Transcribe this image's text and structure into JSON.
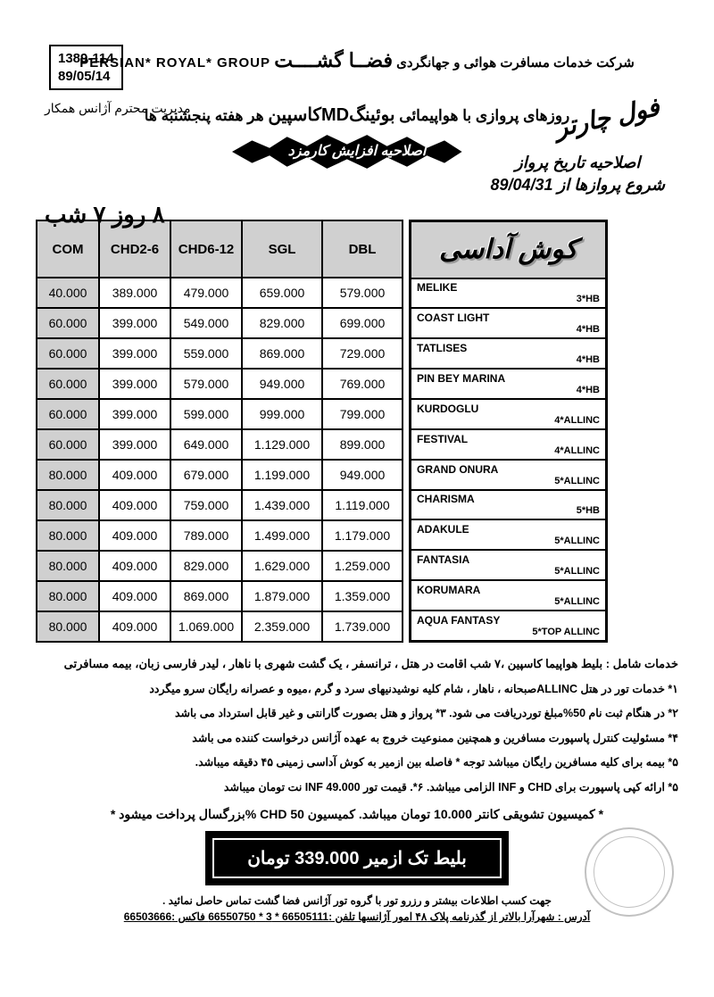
{
  "ref": {
    "line1": "1389-114",
    "line2": "89/05/14"
  },
  "header": {
    "company_fa": "فضــا گشــــت",
    "company_prefix": "شرکت خدمات مسافرت هوائی و جهانگردی",
    "company_en": "PERSIAN* ROYAL* GROUP",
    "management": "مدیریت محترم آژانس همکار"
  },
  "flight_title": {
    "pre": "روزهای پروازی با هواپیمائی",
    "bold": "بوئینگMDکاسپین",
    "post": " هر هفته پنجشنبه ها"
  },
  "charter": "فول چارتر",
  "correction": {
    "l1": "اصلاحیه تاریخ پرواز",
    "l2": "شروع پروازها از 89/04/31"
  },
  "black_star": "اصلاحیه افزایش کارمزد",
  "duration": "۸ روز ۷ شب",
  "destination": "کوش آداسی",
  "price_headers": [
    "COM",
    "CHD2-6",
    "CHD6-12",
    "SGL",
    "DBL"
  ],
  "hotels": [
    {
      "name": "MELIKE",
      "class": "3*HB",
      "com": "40.000",
      "chd26": "389.000",
      "chd612": "479.000",
      "sgl": "659.000",
      "dbl": "579.000"
    },
    {
      "name": "COAST LIGHT",
      "class": "4*HB",
      "com": "60.000",
      "chd26": "399.000",
      "chd612": "549.000",
      "sgl": "829.000",
      "dbl": "699.000"
    },
    {
      "name": "TATLISES",
      "class": "4*HB",
      "com": "60.000",
      "chd26": "399.000",
      "chd612": "559.000",
      "sgl": "869.000",
      "dbl": "729.000"
    },
    {
      "name": "PIN BEY MARINA",
      "class": "4*HB",
      "com": "60.000",
      "chd26": "399.000",
      "chd612": "579.000",
      "sgl": "949.000",
      "dbl": "769.000"
    },
    {
      "name": "KURDOGLU",
      "class": "4*ALLINC",
      "com": "60.000",
      "chd26": "399.000",
      "chd612": "599.000",
      "sgl": "999.000",
      "dbl": "799.000"
    },
    {
      "name": "FESTIVAL",
      "class": "4*ALLINC",
      "com": "60.000",
      "chd26": "399.000",
      "chd612": "649.000",
      "sgl": "1.129.000",
      "dbl": "899.000"
    },
    {
      "name": "GRAND ONURA",
      "class": "5*ALLINC",
      "com": "80.000",
      "chd26": "409.000",
      "chd612": "679.000",
      "sgl": "1.199.000",
      "dbl": "949.000"
    },
    {
      "name": "CHARISMA",
      "class": "5*HB",
      "com": "80.000",
      "chd26": "409.000",
      "chd612": "759.000",
      "sgl": "1.439.000",
      "dbl": "1.119.000"
    },
    {
      "name": "ADAKULE",
      "class": "5*ALLINC",
      "com": "80.000",
      "chd26": "409.000",
      "chd612": "789.000",
      "sgl": "1.499.000",
      "dbl": "1.179.000"
    },
    {
      "name": "FANTASIA",
      "class": "5*ALLINC",
      "com": "80.000",
      "chd26": "409.000",
      "chd612": "829.000",
      "sgl": "1.629.000",
      "dbl": "1.259.000"
    },
    {
      "name": "KORUMARA",
      "class": "5*ALLINC",
      "com": "80.000",
      "chd26": "409.000",
      "chd612": "869.000",
      "sgl": "1.879.000",
      "dbl": "1.359.000"
    },
    {
      "name": "AQUA FANTASY",
      "class": "5*TOP ALLINC",
      "com": "80.000",
      "chd26": "409.000",
      "chd612": "1.069.000",
      "sgl": "2.359.000",
      "dbl": "1.739.000"
    }
  ],
  "notes": [
    "خدمات شامل : بلیط هواپیما کاسپین ،۷ شب اقامت در هتل ، ترانسفر ، یک گشت شهری با ناهار ، لیدر فارسی زبان، بیمه مسافرتی",
    "۱* خدمات تور در هتل ALLINCصبحانه ، ناهار ، شام کلیه نوشیدنیهای سرد و گرم ،میوه و عصرانه  رایگان سرو میگردد",
    "۲* در هنگام ثبت نام 50%مبلغ توردریافت  می شود. ۳* پرواز و هتل بصورت گارانتی و غیر قابل استرداد می باشد",
    "۴* مسئولیت کنترل پاسپورت مسافرین و همچنین ممنوعیت خروج به عهده  آژانس درخواست کننده می باشد",
    "۵* بیمه برای کلیه مسافرین رایگان میباشد توجه * فاصله بین  ازمیر به کوش آداسی زمینی  ۴۵ دقیقه  میباشد.",
    "۵* ارائه کپی پاسپورت برای CHD و INF الزامی میباشد. ۶*. قیمت تور INF 49.000 نت تومان میباشد"
  ],
  "commission": "* کمیسیون تشویقی کانتر 10.000 تومان میباشد.     کمیسیون CHD 50 %بزرگسال پرداخت میشود *",
  "ticket_box": "بلیط تک ازمیر 339.000 تومان",
  "contact": "جهت کسب اطلاعات بیشتر و رزرو تور با گروه تور آژانس فضا گشت تماس حاصل نمائید .",
  "address": "آدرس : شهرآرا بالاتر از گذرنامه پلاک ۴۸ امور آژانسها  تلفن :66505111 * 3 * 66550750  فاکس :66503666"
}
